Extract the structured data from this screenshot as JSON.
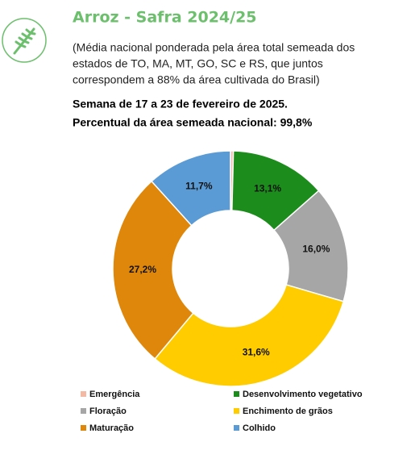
{
  "chart_data": {
    "type": "donut",
    "title": "Arroz - Safra 2024/25",
    "subtitle_lines": [
      "(Média nacional ponderada pela área total semeada dos",
      "estados de TO, MA, MT, GO, SC e RS, que juntos",
      "correspondem a 88% da área cultivada do Brasil)"
    ],
    "week": "Semana de 17 a 23 de fevereiro de 2025.",
    "share": "Percentual da área semeada nacional: 99,8%",
    "categories": [
      "Emergência",
      "Desenvolvimento vegetativo",
      "Floração",
      "Enchimento de grãos",
      "Maturação",
      "Colhido"
    ],
    "values": [
      0.4,
      13.1,
      16.0,
      31.6,
      27.2,
      11.7
    ],
    "value_labels": [
      null,
      "13,1%",
      "16,0%",
      "31,6%",
      "27,2%",
      "11,7%"
    ],
    "colors": [
      "#f4b9a2",
      "#1c8c1c",
      "#a6a6a6",
      "#ffcc00",
      "#df870b",
      "#5b9bd5"
    ]
  }
}
